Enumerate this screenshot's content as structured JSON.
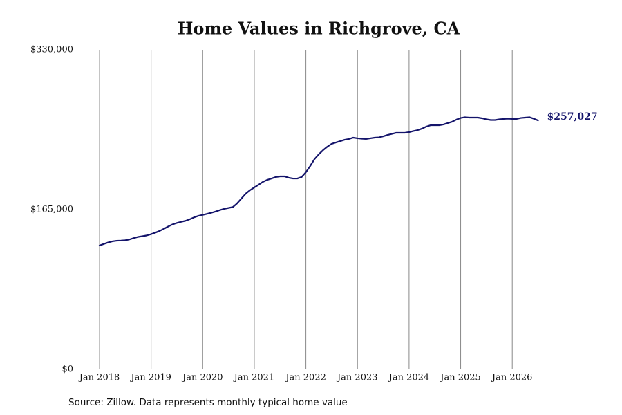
{
  "chart_data": {
    "type": "line",
    "title": "Home Values in Richgrove, CA",
    "source": "Source: Zillow. Data represents monthly typical home value",
    "color": "#14146b",
    "grid": true,
    "x": [
      "2018-01",
      "2018-02",
      "2018-03",
      "2018-04",
      "2018-05",
      "2018-06",
      "2018-07",
      "2018-08",
      "2018-09",
      "2018-10",
      "2018-11",
      "2018-12",
      "2019-01",
      "2019-02",
      "2019-03",
      "2019-04",
      "2019-05",
      "2019-06",
      "2019-07",
      "2019-08",
      "2019-09",
      "2019-10",
      "2019-11",
      "2019-12",
      "2020-01",
      "2020-02",
      "2020-03",
      "2020-04",
      "2020-05",
      "2020-06",
      "2020-07",
      "2020-08",
      "2020-09",
      "2020-10",
      "2020-11",
      "2020-12",
      "2021-01",
      "2021-02",
      "2021-03",
      "2021-04",
      "2021-05",
      "2021-06",
      "2021-07",
      "2021-08",
      "2021-09",
      "2021-10",
      "2021-11",
      "2021-12",
      "2022-01",
      "2022-02",
      "2022-03",
      "2022-04",
      "2022-05",
      "2022-06",
      "2022-07",
      "2022-08",
      "2022-09",
      "2022-10",
      "2022-11",
      "2022-12",
      "2023-01",
      "2023-02",
      "2023-03",
      "2023-04",
      "2023-05",
      "2023-06",
      "2023-07",
      "2023-08",
      "2023-09",
      "2023-10",
      "2023-11",
      "2023-12",
      "2024-01",
      "2024-02",
      "2024-03",
      "2024-04",
      "2024-05",
      "2024-06",
      "2024-07",
      "2024-08",
      "2024-09",
      "2024-10",
      "2024-11",
      "2024-12",
      "2025-01",
      "2025-02",
      "2025-03",
      "2025-04",
      "2025-05",
      "2025-06",
      "2025-07",
      "2025-08",
      "2025-09",
      "2025-10",
      "2025-11",
      "2025-12",
      "2026-01",
      "2026-02",
      "2026-03",
      "2026-04",
      "2026-05",
      "2026-06",
      "2026-07"
    ],
    "values": [
      127900,
      129500,
      131000,
      132200,
      132800,
      133000,
      133300,
      134200,
      135600,
      136800,
      137500,
      138300,
      139600,
      141200,
      143000,
      145200,
      147600,
      149700,
      151200,
      152400,
      153400,
      155000,
      157000,
      158500,
      159500,
      160600,
      161700,
      163000,
      164500,
      165800,
      166700,
      167600,
      171400,
      176400,
      181400,
      185000,
      187900,
      190700,
      193600,
      195700,
      197100,
      198600,
      199300,
      199300,
      197900,
      197100,
      197100,
      198600,
      203600,
      210000,
      217100,
      222100,
      226400,
      230000,
      232900,
      234300,
      235700,
      237100,
      237900,
      239300,
      238600,
      238200,
      237900,
      238600,
      239300,
      239600,
      240700,
      242100,
      243200,
      244300,
      244300,
      244300,
      245000,
      246100,
      247100,
      248600,
      250700,
      252100,
      252100,
      252100,
      252900,
      254300,
      255700,
      257900,
      259600,
      260400,
      260000,
      260000,
      260000,
      259300,
      258200,
      257500,
      257500,
      258200,
      258600,
      258900,
      258600,
      258600,
      259600,
      260000,
      260400,
      258900,
      257027
    ],
    "value_labels": [
      null,
      null,
      null,
      null,
      null,
      null,
      null,
      null,
      null,
      null,
      null,
      null,
      null,
      null,
      null,
      null,
      null,
      null,
      null,
      null,
      null,
      null,
      null,
      null,
      null,
      null,
      null,
      null,
      null,
      null,
      null,
      null,
      null,
      null,
      null,
      null,
      null,
      null,
      null,
      null,
      null,
      null,
      null,
      null,
      null,
      null,
      null,
      null,
      null,
      null,
      null,
      null,
      null,
      null,
      null,
      null,
      null,
      null,
      null,
      null,
      null,
      null,
      null,
      null,
      null,
      null,
      null,
      null,
      null,
      null,
      null,
      null,
      null,
      null,
      null,
      null,
      null,
      null,
      null,
      null,
      null,
      null,
      null,
      null,
      null,
      null,
      null,
      null,
      null,
      null,
      null,
      null,
      null,
      null,
      null,
      null,
      null,
      null,
      null,
      null,
      null,
      null,
      "$257,027"
    ],
    "xlim": [
      "2018-01",
      "2026-07"
    ],
    "xticks": [
      {
        "value": "2018-01",
        "label": "Jan 2018"
      },
      {
        "value": "2019-01",
        "label": "Jan 2019"
      },
      {
        "value": "2020-01",
        "label": "Jan 2020"
      },
      {
        "value": "2021-01",
        "label": "Jan 2021"
      },
      {
        "value": "2022-01",
        "label": "Jan 2022"
      },
      {
        "value": "2023-01",
        "label": "Jan 2023"
      },
      {
        "value": "2024-01",
        "label": "Jan 2024"
      },
      {
        "value": "2025-01",
        "label": "Jan 2025"
      },
      {
        "value": "2026-01",
        "label": "Jan 2026"
      }
    ],
    "ylim": [
      0,
      330000
    ],
    "yticks": [
      {
        "value": 0,
        "label": "$0"
      },
      {
        "value": 165000,
        "label": "$165,000"
      },
      {
        "value": 330000,
        "label": "$330,000"
      }
    ]
  }
}
